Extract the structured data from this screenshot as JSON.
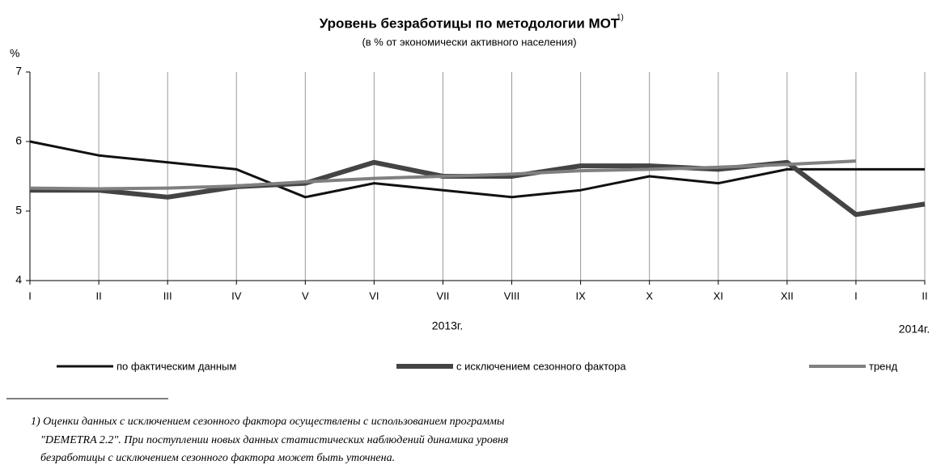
{
  "chart_data": {
    "type": "line",
    "title": "Уровень безработицы по методологии МОТ",
    "title_superscript": "1)",
    "subtitle": "(в % от экономически активного населения)",
    "y_label": "%",
    "categories": [
      "I",
      "II",
      "III",
      "IV",
      "V",
      "VI",
      "VII",
      "VIII",
      "IX",
      "X",
      "XI",
      "XII",
      "I",
      "II"
    ],
    "year_labels": [
      "2013г.",
      "2014г."
    ],
    "ylim": [
      4,
      7
    ],
    "yticks": [
      4,
      5,
      6,
      7
    ],
    "series": [
      {
        "name": "по фактическим данным",
        "color": "#111111",
        "width": 3,
        "values": [
          6.0,
          5.8,
          5.7,
          5.6,
          5.2,
          5.4,
          5.3,
          5.2,
          5.3,
          5.5,
          5.4,
          5.6,
          5.6,
          5.6
        ]
      },
      {
        "name": "с исключением сезонного фактора",
        "color": "#444444",
        "width": 6,
        "values": [
          5.3,
          5.3,
          5.2,
          5.35,
          5.4,
          5.7,
          5.5,
          5.5,
          5.65,
          5.65,
          5.6,
          5.7,
          4.95,
          5.1
        ]
      },
      {
        "name": "тренд",
        "color": "#808080",
        "width": 4,
        "values": [
          5.33,
          5.32,
          5.33,
          5.36,
          5.42,
          5.47,
          5.5,
          5.53,
          5.58,
          5.6,
          5.63,
          5.67,
          5.72,
          null
        ]
      }
    ]
  },
  "footnote": {
    "lines": [
      "1) Оценки данных с исключением сезонного фактора осуществлены с использованием программы",
      "\"DEMETRA 2.2\". При поступлении новых данных статистических наблюдений динамика уровня",
      "безработицы с исключением сезонного фактора может быть уточнена."
    ]
  }
}
